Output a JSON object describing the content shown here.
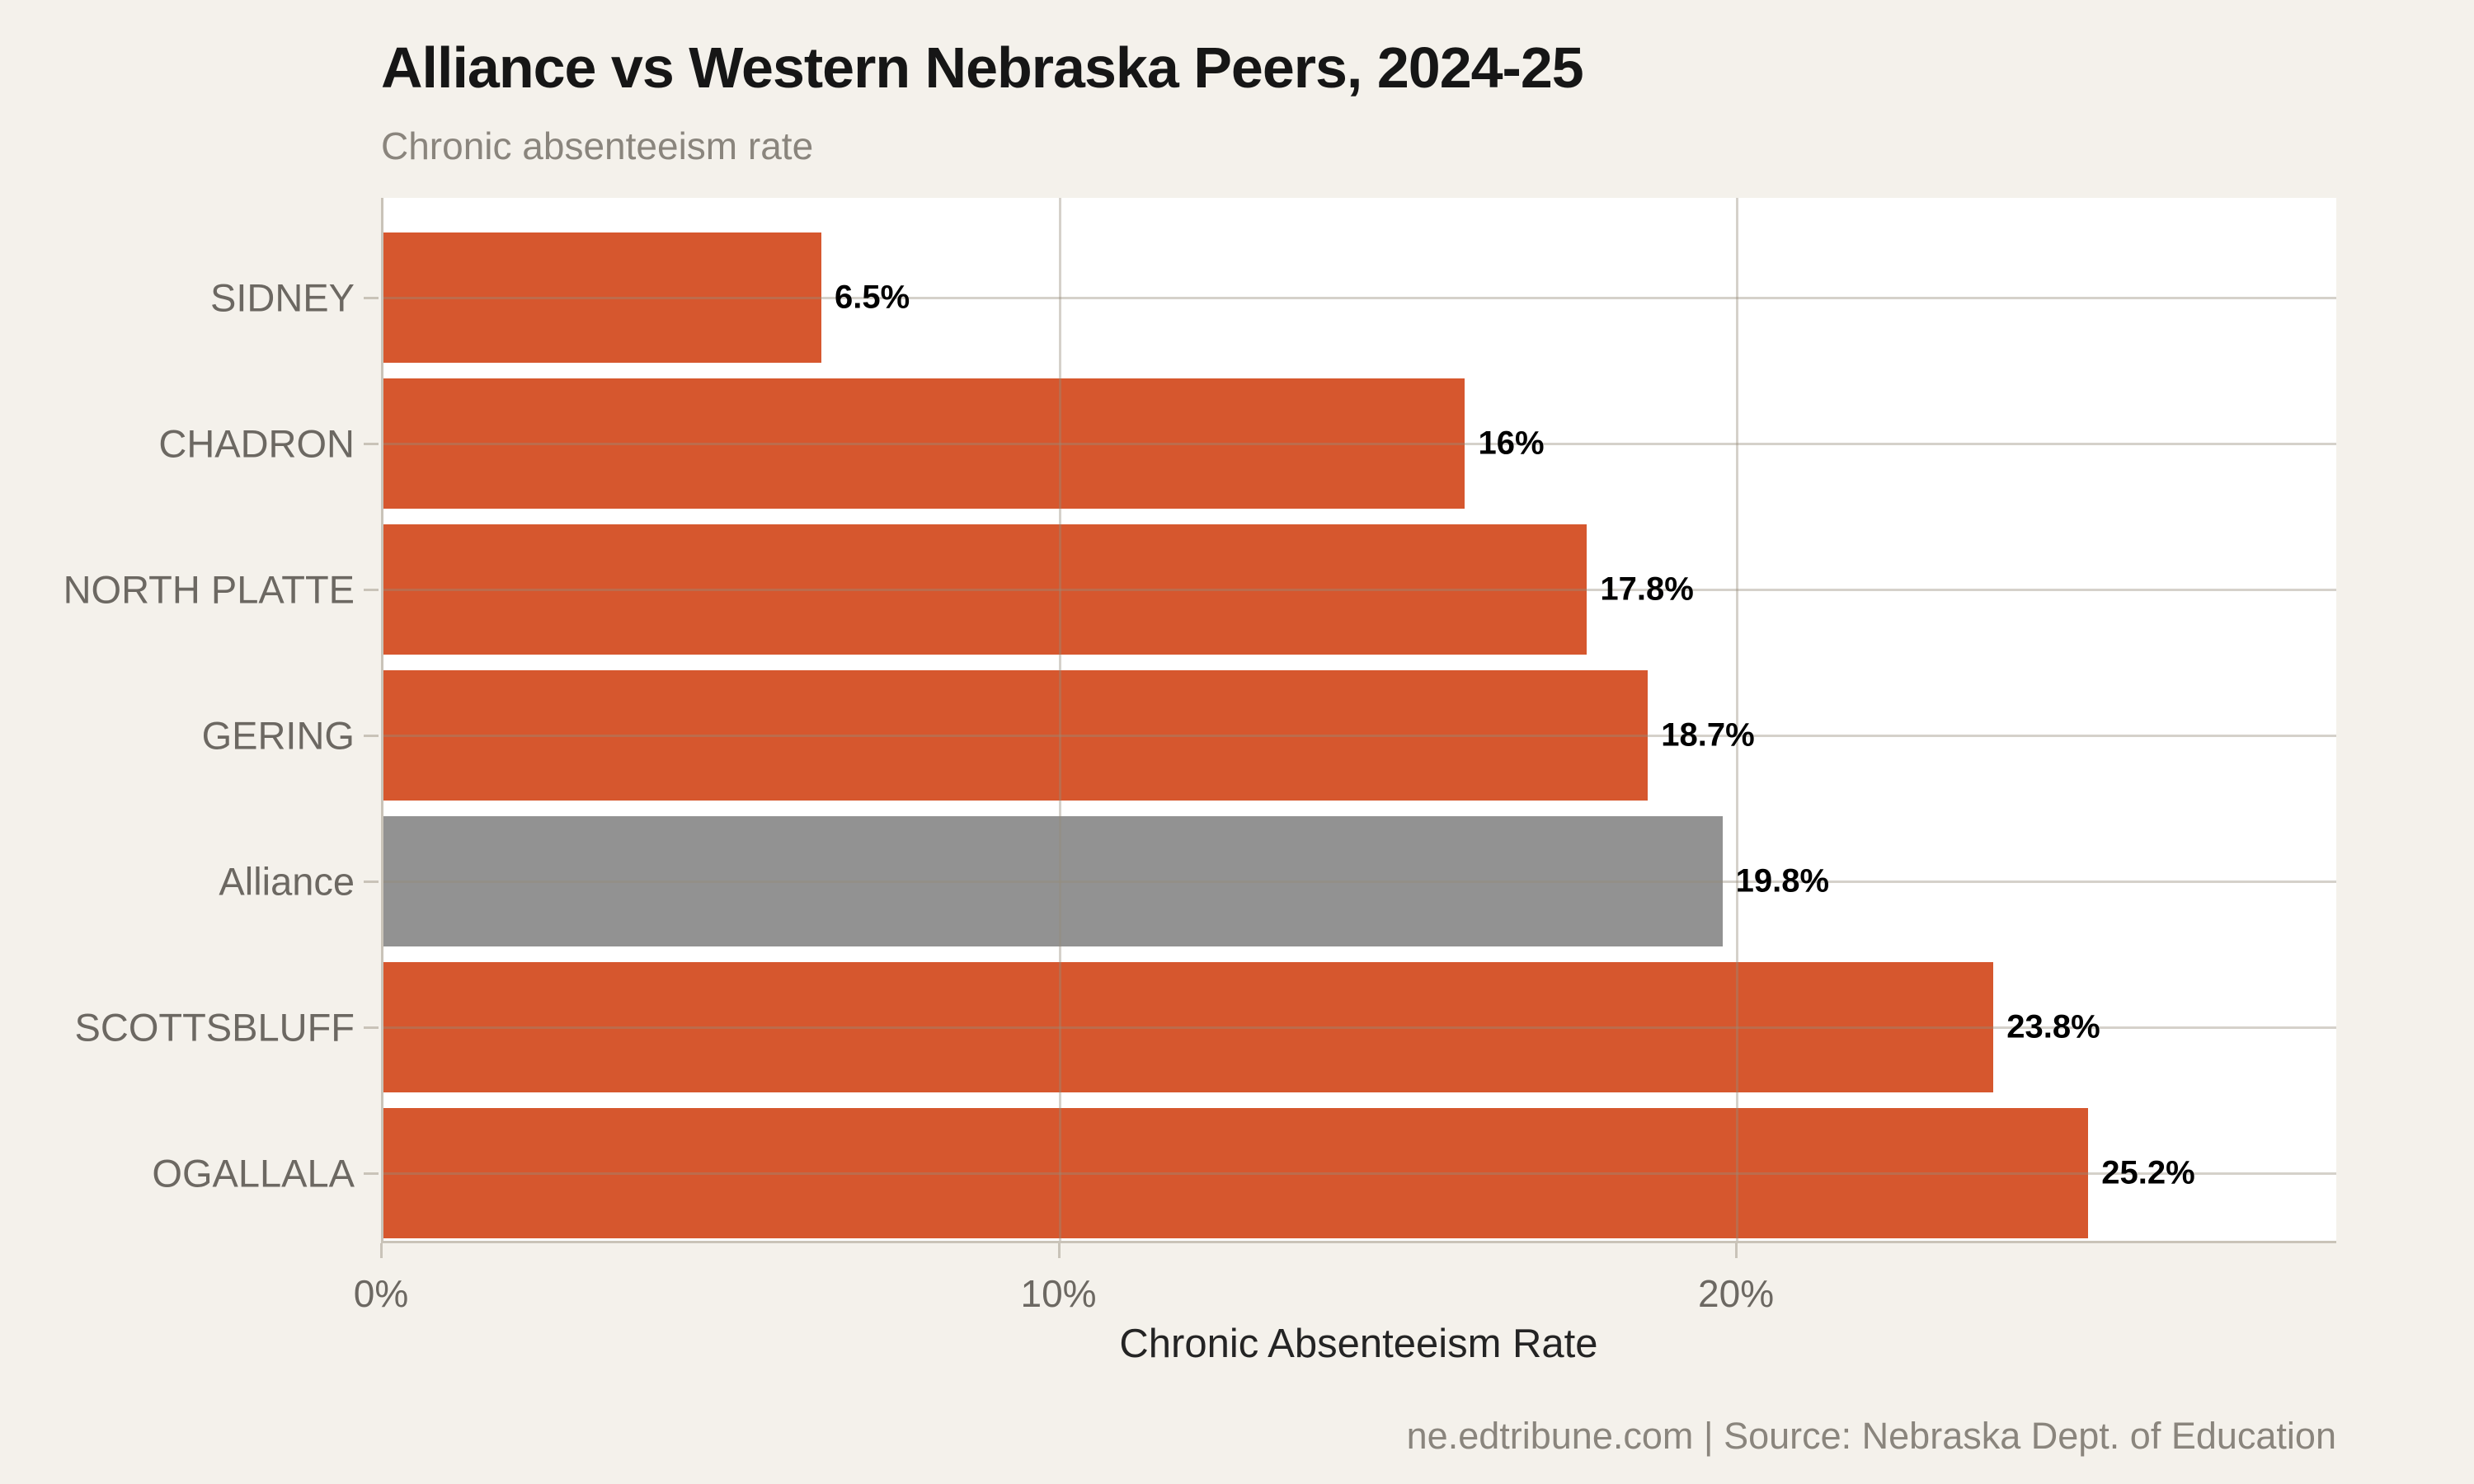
{
  "title": "Alliance vs Western Nebraska Peers, 2024-25",
  "subtitle": "Chronic absenteeism rate",
  "footer": "ne.edtribune.com | Source: Nebraska Dept. of Education",
  "colors": {
    "background": "#F4F1EB",
    "plot_background": "#FFFFFF",
    "bar_default": "#D6572E",
    "bar_highlight": "#929292",
    "gridline": "#D8D3CA",
    "axis_line": "#C9C3B8",
    "category_label": "#6C6862",
    "muted_text": "#8A857D",
    "value_label": "#000000"
  },
  "chart_data": {
    "type": "bar",
    "orientation": "horizontal",
    "title": "Alliance vs Western Nebraska Peers, 2024-25",
    "subtitle": "Chronic absenteeism rate",
    "categories": [
      "SIDNEY",
      "CHADRON",
      "NORTH PLATTE",
      "GERING",
      "Alliance",
      "SCOTTSBLUFF",
      "OGALLALA"
    ],
    "values": [
      6.5,
      16,
      17.8,
      18.7,
      19.8,
      23.8,
      25.2
    ],
    "value_labels": [
      "6.5%",
      "16%",
      "17.8%",
      "18.7%",
      "19.8%",
      "23.8%",
      "25.2%"
    ],
    "highlight_category": "Alliance",
    "xlabel": "Chronic Absenteeism Rate",
    "ylabel": "",
    "x_ticks": [
      {
        "value": 0,
        "label": "0%"
      },
      {
        "value": 10,
        "label": "10%"
      },
      {
        "value": 20,
        "label": "20%"
      }
    ],
    "xlim": [
      0,
      28.86
    ],
    "grid": true,
    "legend_position": "none"
  }
}
